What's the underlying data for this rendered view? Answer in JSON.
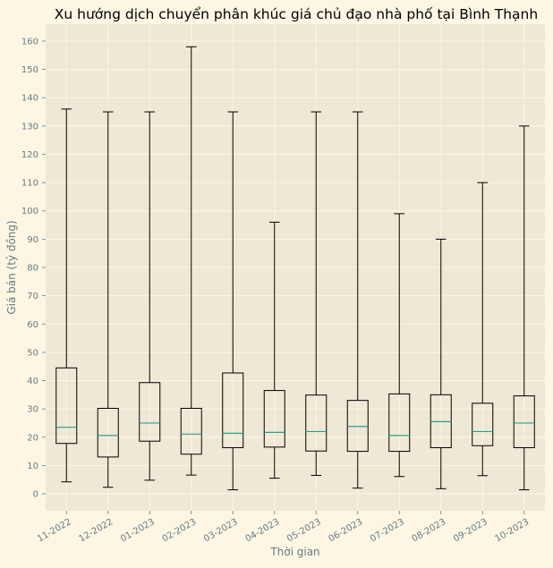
{
  "colors": {
    "figure_bg": "#fdf6e3",
    "plot_bg": "#eee8d5",
    "grid": "#fdf6e3",
    "box_line": "#000000",
    "median": "#2aa18a",
    "tick_text": "#657b83",
    "title_text": "#000000"
  },
  "chart_data": {
    "type": "box",
    "title": "Xu hướng dịch chuyển phân khúc giá chủ đạo nhà phố tại Bình Thạnh",
    "xlabel": "Thời gian",
    "ylabel": "Giá bán (tỷ đồng)",
    "ylim": [
      -6,
      166
    ],
    "yticks": [
      0,
      10,
      20,
      30,
      40,
      50,
      60,
      70,
      80,
      90,
      100,
      110,
      120,
      130,
      140,
      150,
      160
    ],
    "grid": true,
    "categories": [
      "11-2022",
      "12-2022",
      "01-2023",
      "02-2023",
      "03-2023",
      "04-2023",
      "05-2023",
      "06-2023",
      "07-2023",
      "08-2023",
      "09-2023",
      "10-2023"
    ],
    "boxes": [
      {
        "min": 4.2,
        "q1": 17.8,
        "median": 23.5,
        "q3": 44.5,
        "max": 136
      },
      {
        "min": 2.3,
        "q1": 13,
        "median": 20.6,
        "q3": 30.2,
        "max": 135
      },
      {
        "min": 4.8,
        "q1": 18.6,
        "median": 25,
        "q3": 39.3,
        "max": 135
      },
      {
        "min": 6.6,
        "q1": 14,
        "median": 21.1,
        "q3": 30.2,
        "max": 158
      },
      {
        "min": 1.4,
        "q1": 16.3,
        "median": 21.4,
        "q3": 42.7,
        "max": 135
      },
      {
        "min": 5.5,
        "q1": 16.5,
        "median": 21.7,
        "q3": 36.5,
        "max": 96
      },
      {
        "min": 6.5,
        "q1": 15.1,
        "median": 22,
        "q3": 34.9,
        "max": 135
      },
      {
        "min": 2,
        "q1": 15,
        "median": 23.8,
        "q3": 33,
        "max": 135
      },
      {
        "min": 6.1,
        "q1": 15,
        "median": 20.6,
        "q3": 35.3,
        "max": 99
      },
      {
        "min": 1.8,
        "q1": 16.3,
        "median": 25.5,
        "q3": 35,
        "max": 90
      },
      {
        "min": 6.4,
        "q1": 17,
        "median": 22,
        "q3": 32,
        "max": 110
      },
      {
        "min": 1.4,
        "q1": 16.3,
        "median": 25,
        "q3": 34.6,
        "max": 130
      }
    ]
  }
}
